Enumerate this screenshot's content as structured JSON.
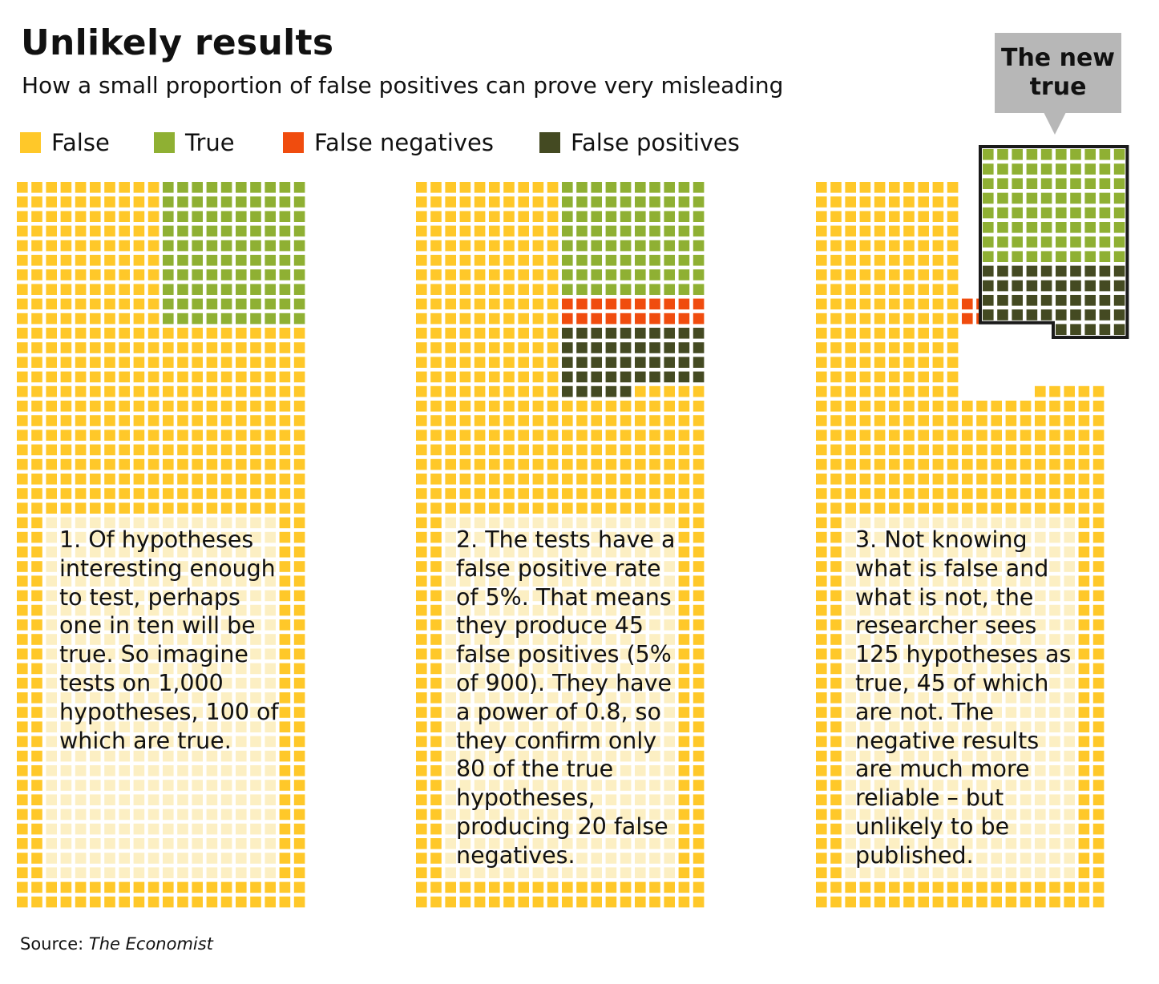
{
  "title": "Unlikely results",
  "subtitle": "How a small proportion of false positives can prove very misleading",
  "legend": [
    {
      "label": "False",
      "color": "#ffc829"
    },
    {
      "label": "True",
      "color": "#8fb033"
    },
    {
      "label": "False negatives",
      "color": "#f04c0e"
    },
    {
      "label": "False positives",
      "color": "#444a22"
    }
  ],
  "colors": {
    "false": "#ffc829",
    "true": "#8fb033",
    "false_negative": "#f04c0e",
    "false_positive": "#444a22",
    "faded": "#fcefc3",
    "callout": "#b7b7b7"
  },
  "chart_data": {
    "type": "waffle",
    "total": 1000,
    "panels": [
      {
        "text": "1. Of hypotheses interesting enough to test, perhaps one in ten will be true. So imagine tests on 1,000 hypotheses, 100 of which are true.",
        "counts": {
          "false": 900,
          "true": 100
        }
      },
      {
        "text": "2. The tests have a false positive rate of 5%. That means they produce 45 false positives (5% of 900). They have a power of 0.8, so they confirm only 80 of the true hypotheses, producing 20 false negatives.",
        "counts": {
          "false": 855,
          "true": 80,
          "false_negative": 20,
          "false_positive": 45
        }
      },
      {
        "text": "3. Not knowing what is false and what is not, the researcher sees 125 hypotheses as true, 45 of which are not. The negative results are much more reliable – but unlikely to be published.",
        "counts": {
          "false": 855,
          "true": 80,
          "false_negative": 20,
          "false_positive": 45
        }
      }
    ],
    "callout": "The new true"
  },
  "source": {
    "prefix": "Source:",
    "name": "The Economist"
  }
}
